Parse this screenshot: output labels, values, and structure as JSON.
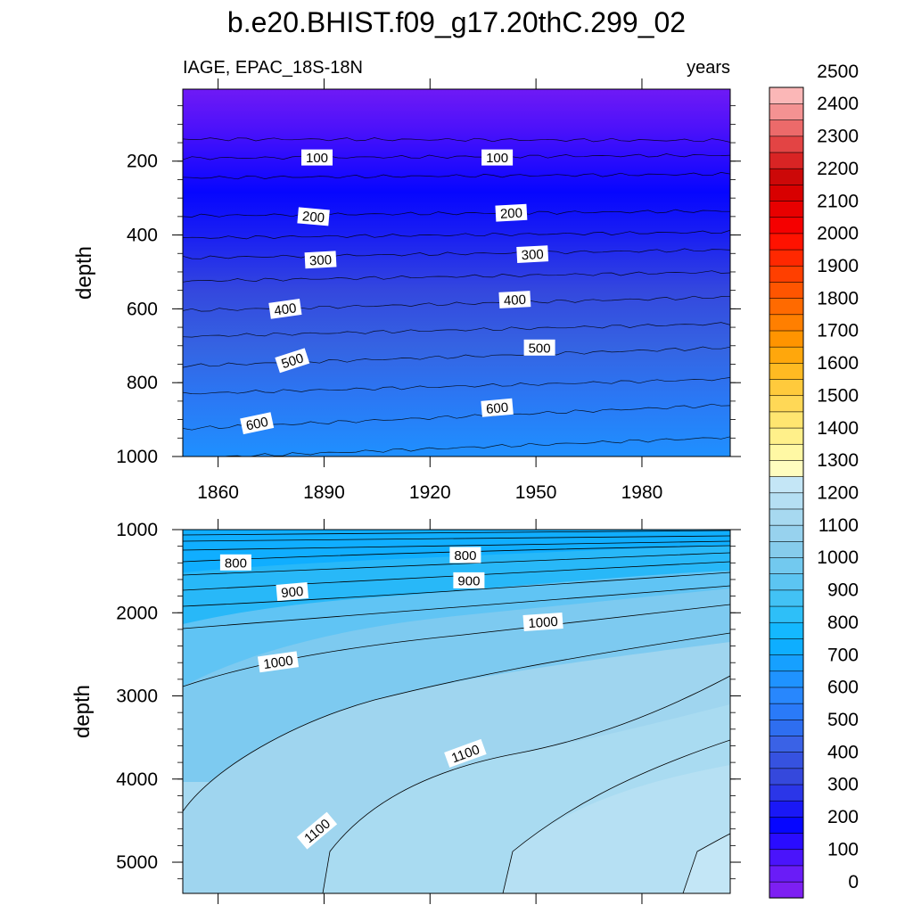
{
  "chart_data": {
    "type": "heatmap",
    "title": "b.e20.BHIST.f09_g17.20thC.299_02",
    "left_subtitle": "IAGE, EPAC_18S-18N",
    "right_subtitle": "years",
    "ylabel": "depth",
    "x_ticks": [
      1860,
      1890,
      1920,
      1950,
      1980
    ],
    "x_range": [
      1850,
      2005
    ],
    "top_panel": {
      "y_range": [
        1000,
        5
      ],
      "y_ticks": [
        200,
        400,
        600,
        800,
        1000
      ],
      "contours": [
        {
          "level": 50,
          "depth": [
            140,
            144
          ]
        },
        {
          "level": 100,
          "depth": [
            192,
            184
          ]
        },
        {
          "level": 150,
          "depth": [
            245,
            235
          ]
        },
        {
          "level": 200,
          "depth": [
            348,
            335
          ]
        },
        {
          "level": 250,
          "depth": [
            408,
            392
          ]
        },
        {
          "level": 300,
          "depth": [
            462,
            440
          ]
        },
        {
          "level": 350,
          "depth": [
            525,
            500
          ]
        },
        {
          "level": 400,
          "depth": [
            605,
            568
          ]
        },
        {
          "level": 450,
          "depth": [
            675,
            640
          ]
        },
        {
          "level": 500,
          "depth": [
            755,
            705
          ]
        },
        {
          "level": 550,
          "depth": [
            830,
            790
          ]
        },
        {
          "level": 600,
          "depth": [
            925,
            860
          ]
        },
        {
          "level": 650,
          "depth": [
            1005,
            948
          ]
        }
      ],
      "contour_labels": [
        {
          "text": "100",
          "x": 1888,
          "depth": 190,
          "angle": 0
        },
        {
          "text": "100",
          "x": 1939,
          "depth": 190,
          "angle": 0
        },
        {
          "text": "200",
          "x": 1887,
          "depth": 350,
          "angle": 5
        },
        {
          "text": "200",
          "x": 1943,
          "depth": 340,
          "angle": -3
        },
        {
          "text": "300",
          "x": 1889,
          "depth": 467,
          "angle": -3
        },
        {
          "text": "300",
          "x": 1949,
          "depth": 452,
          "angle": -3
        },
        {
          "text": "400",
          "x": 1879,
          "depth": 600,
          "angle": -8
        },
        {
          "text": "400",
          "x": 1944,
          "depth": 575,
          "angle": -3
        },
        {
          "text": "500",
          "x": 1881,
          "depth": 740,
          "angle": -18
        },
        {
          "text": "500",
          "x": 1951,
          "depth": 705,
          "angle": 0
        },
        {
          "text": "600",
          "x": 1871,
          "depth": 910,
          "angle": -12
        },
        {
          "text": "600",
          "x": 1939,
          "depth": 868,
          "angle": -5
        }
      ]
    },
    "bottom_panel": {
      "y_range": [
        1000,
        5375
      ],
      "y_ticks": [
        1000,
        2000,
        3000,
        4000,
        5000
      ],
      "contour_labels": [
        {
          "text": "800",
          "x": 1865,
          "depth": 1395,
          "angle": 0
        },
        {
          "text": "800",
          "x": 1930,
          "depth": 1305,
          "angle": 0
        },
        {
          "text": "900",
          "x": 1881,
          "depth": 1745,
          "angle": -5
        },
        {
          "text": "900",
          "x": 1931,
          "depth": 1610,
          "angle": 0
        },
        {
          "text": "1000",
          "x": 1877,
          "depth": 2590,
          "angle": -8
        },
        {
          "text": "1000",
          "x": 1952,
          "depth": 2110,
          "angle": -4
        },
        {
          "text": "1100",
          "x": 1930,
          "depth": 3690,
          "angle": -20
        },
        {
          "text": "1100",
          "x": 1888,
          "depth": 4620,
          "angle": -40
        }
      ]
    },
    "colorbar": {
      "labels": [
        0,
        100,
        200,
        300,
        400,
        500,
        600,
        700,
        800,
        900,
        1000,
        1100,
        1200,
        1300,
        1400,
        1500,
        1600,
        1700,
        1800,
        1900,
        2000,
        2100,
        2200,
        2300,
        2400,
        2500
      ],
      "colors": [
        "#7d1ff2",
        "#6a1cf7",
        "#4a14fb",
        "#2a0cff",
        "#0606ff",
        "#1a18f6",
        "#2b36e8",
        "#3548dc",
        "#3652e0",
        "#3a62e6",
        "#2e6ef0",
        "#2a7af8",
        "#2887fd",
        "#1f93ff",
        "#16a0ff",
        "#0eaeff",
        "#14b8ff",
        "#2ebff8",
        "#42c2f5",
        "#5cc5f2",
        "#72c9ef",
        "#86ccec",
        "#97d2ee",
        "#a7d9f0",
        "#b5dff3",
        "#c4e6f6",
        "#fffdbf",
        "#fff8a4",
        "#fff08a",
        "#ffe570",
        "#ffd856",
        "#ffca3c",
        "#ffba22",
        "#ffa70c",
        "#ff9400",
        "#ff7f00",
        "#ff6a00",
        "#ff5500",
        "#ff3f00",
        "#ff2800",
        "#ff1200",
        "#f50000",
        "#e80000",
        "#d80000",
        "#cc0808",
        "#d92424",
        "#e34444",
        "#ec6a6a",
        "#f49292",
        "#fbb7b7"
      ]
    }
  }
}
